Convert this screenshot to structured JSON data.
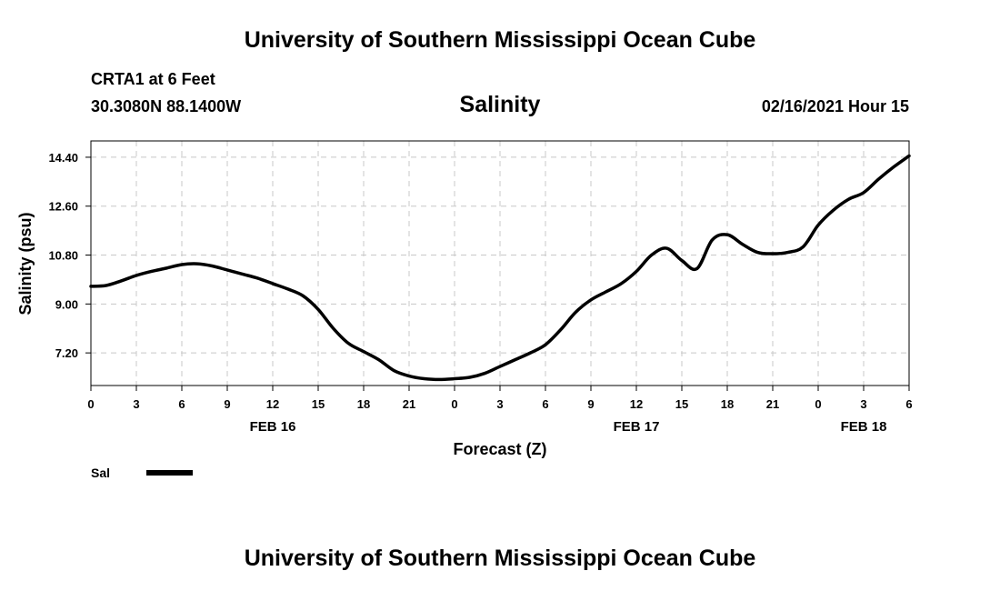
{
  "header": {
    "title": "University of Southern Mississippi Ocean Cube",
    "station": "CRTA1 at 6 Feet",
    "coordinates": "30.3080N 88.1400W",
    "chart_title": "Salinity",
    "datetime": "02/16/2021 Hour 15"
  },
  "footer": {
    "title": "University of Southern Mississippi Ocean Cube"
  },
  "legend": {
    "label": "Sal",
    "color": "#000000"
  },
  "chart_data": {
    "type": "line",
    "title": "Salinity",
    "xlabel": "Forecast (Z)",
    "ylabel": "Salinity (psu)",
    "x_range_hours": [
      0,
      54
    ],
    "ylim": [
      6.0,
      15.0
    ],
    "y_ticks": [
      7.2,
      9.0,
      10.8,
      12.6,
      14.4
    ],
    "y_tick_labels": [
      "7.20",
      "9.00",
      "10.80",
      "12.60",
      "14.40"
    ],
    "x_ticks": [
      0,
      3,
      6,
      9,
      12,
      15,
      18,
      21,
      24,
      27,
      30,
      33,
      36,
      39,
      42,
      45,
      48,
      51,
      54
    ],
    "x_tick_labels": [
      "0",
      "3",
      "6",
      "9",
      "12",
      "15",
      "18",
      "21",
      "0",
      "3",
      "6",
      "9",
      "12",
      "15",
      "18",
      "21",
      "0",
      "3",
      "6"
    ],
    "date_labels": [
      {
        "hour": 12,
        "text": "FEB 16"
      },
      {
        "hour": 36,
        "text": "FEB 17"
      },
      {
        "hour": 51,
        "text": "FEB 18"
      }
    ],
    "grid": true,
    "series": [
      {
        "name": "Sal",
        "x": [
          0,
          1,
          2,
          3,
          4,
          5,
          6,
          7,
          8,
          9,
          10,
          11,
          12,
          13,
          14,
          15,
          16,
          17,
          18,
          19,
          20,
          21,
          22,
          23,
          24,
          25,
          26,
          27,
          28,
          29,
          30,
          31,
          32,
          33,
          34,
          35,
          36,
          37,
          38,
          39,
          40,
          41,
          42,
          43,
          44,
          45,
          46,
          47,
          48,
          49,
          50,
          51,
          52,
          53,
          54
        ],
        "values": [
          9.65,
          9.68,
          9.85,
          10.05,
          10.2,
          10.32,
          10.45,
          10.48,
          10.4,
          10.25,
          10.1,
          9.95,
          9.75,
          9.55,
          9.3,
          8.8,
          8.1,
          7.55,
          7.25,
          6.95,
          6.55,
          6.35,
          6.25,
          6.22,
          6.25,
          6.3,
          6.45,
          6.7,
          6.95,
          7.2,
          7.5,
          8.05,
          8.7,
          9.15,
          9.45,
          9.75,
          10.2,
          10.8,
          11.05,
          10.6,
          10.3,
          11.35,
          11.55,
          11.2,
          10.9,
          10.85,
          10.9,
          11.1,
          11.9,
          12.45,
          12.85,
          13.1,
          13.6,
          14.05,
          14.45
        ]
      }
    ]
  }
}
